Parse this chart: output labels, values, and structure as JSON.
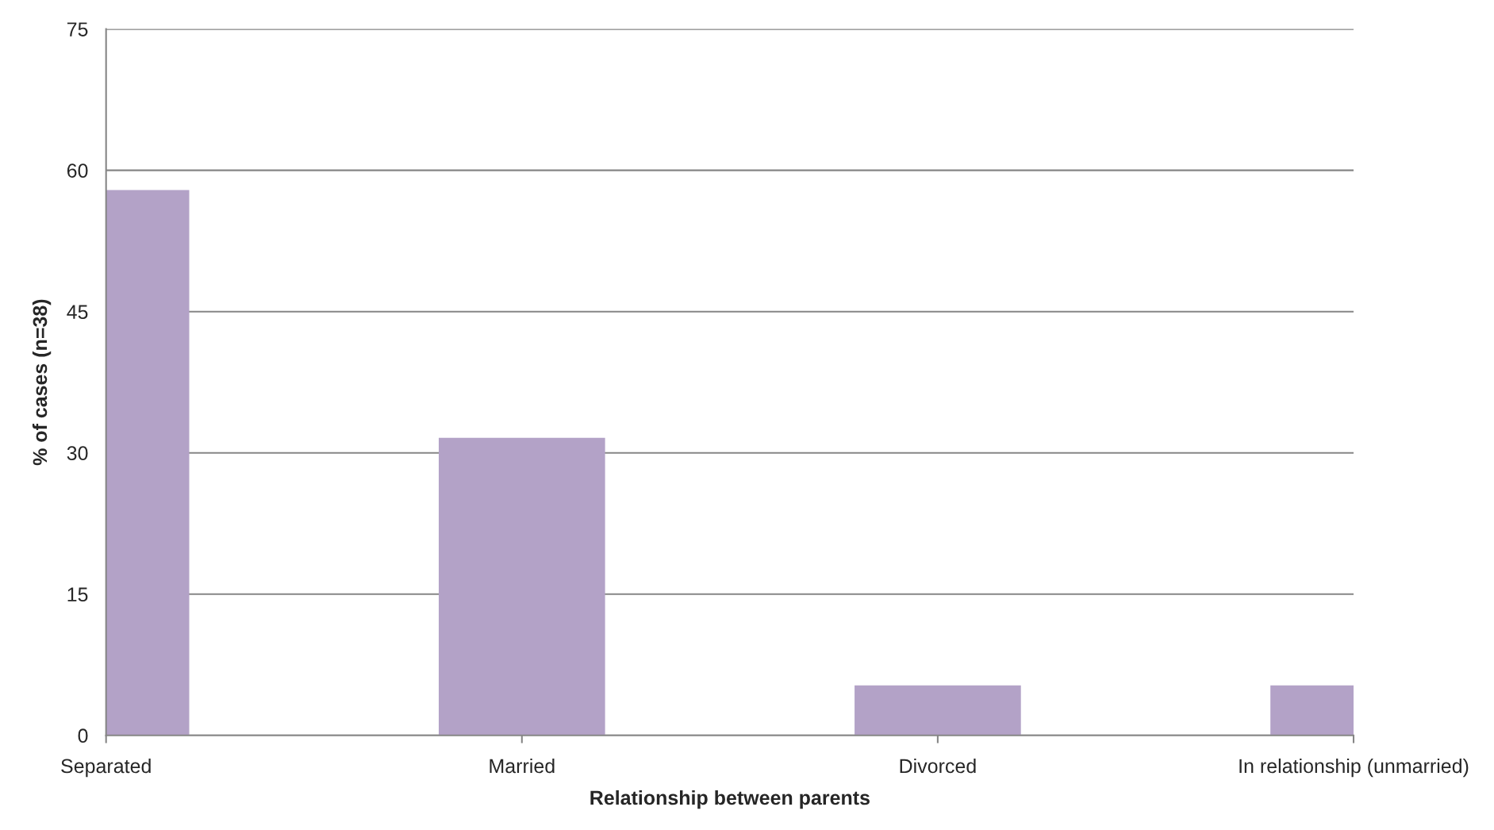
{
  "chart_data": {
    "type": "bar",
    "xlabel": "Relationship between parents",
    "ylabel": "% of cases (n=38)",
    "categories": [
      "Separated",
      "Married",
      "Divorced",
      "In relationship (unmarried)"
    ],
    "values": [
      57.9,
      31.6,
      5.3,
      5.3
    ],
    "color": "#b3a2c7",
    "ylim": [
      0,
      75
    ],
    "yticks": [
      0,
      15,
      30,
      45,
      60,
      75
    ],
    "grid": "y",
    "legend": false
  }
}
